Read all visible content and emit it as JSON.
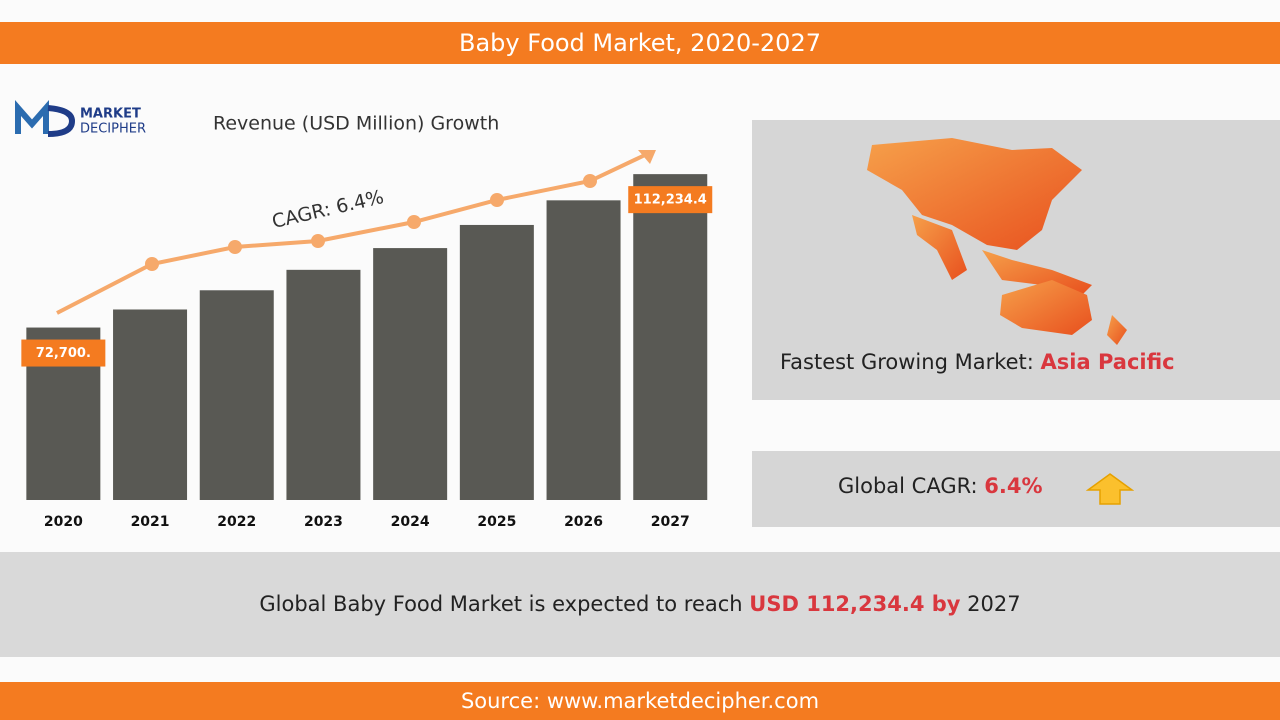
{
  "header": {
    "title": "Baby Food Market, 2020-2027"
  },
  "logo": {
    "line1": "MARKET",
    "line2": "DECIPHER"
  },
  "chart_data": {
    "type": "bar",
    "title": "Revenue (USD Million) Growth",
    "annotation": "CAGR: 6.4%",
    "categories": [
      "2020",
      "2021",
      "2022",
      "2023",
      "2024",
      "2025",
      "2026",
      "2027"
    ],
    "values": [
      72700,
      77353,
      82304,
      87571,
      93176,
      99139,
      105484,
      112234.4
    ],
    "value_labels": [
      "72,700.",
      null,
      null,
      null,
      null,
      null,
      null,
      "112,234.4"
    ],
    "color": "#595954",
    "label_color": "#f47b20",
    "ylim": [
      28256,
      120000
    ]
  },
  "map_panel": {
    "caption": "Fastest Growing Market: ",
    "region": "Asia Pacific"
  },
  "cagr_panel": {
    "caption": "Global CAGR: ",
    "value": "6.4%"
  },
  "summary": {
    "text": "Global Baby Food Market is expected to reach ",
    "amount": "USD 112,234.4",
    "by": " by",
    "year": " 2027"
  },
  "footer": {
    "source": "Source: www.marketdecipher.com"
  }
}
